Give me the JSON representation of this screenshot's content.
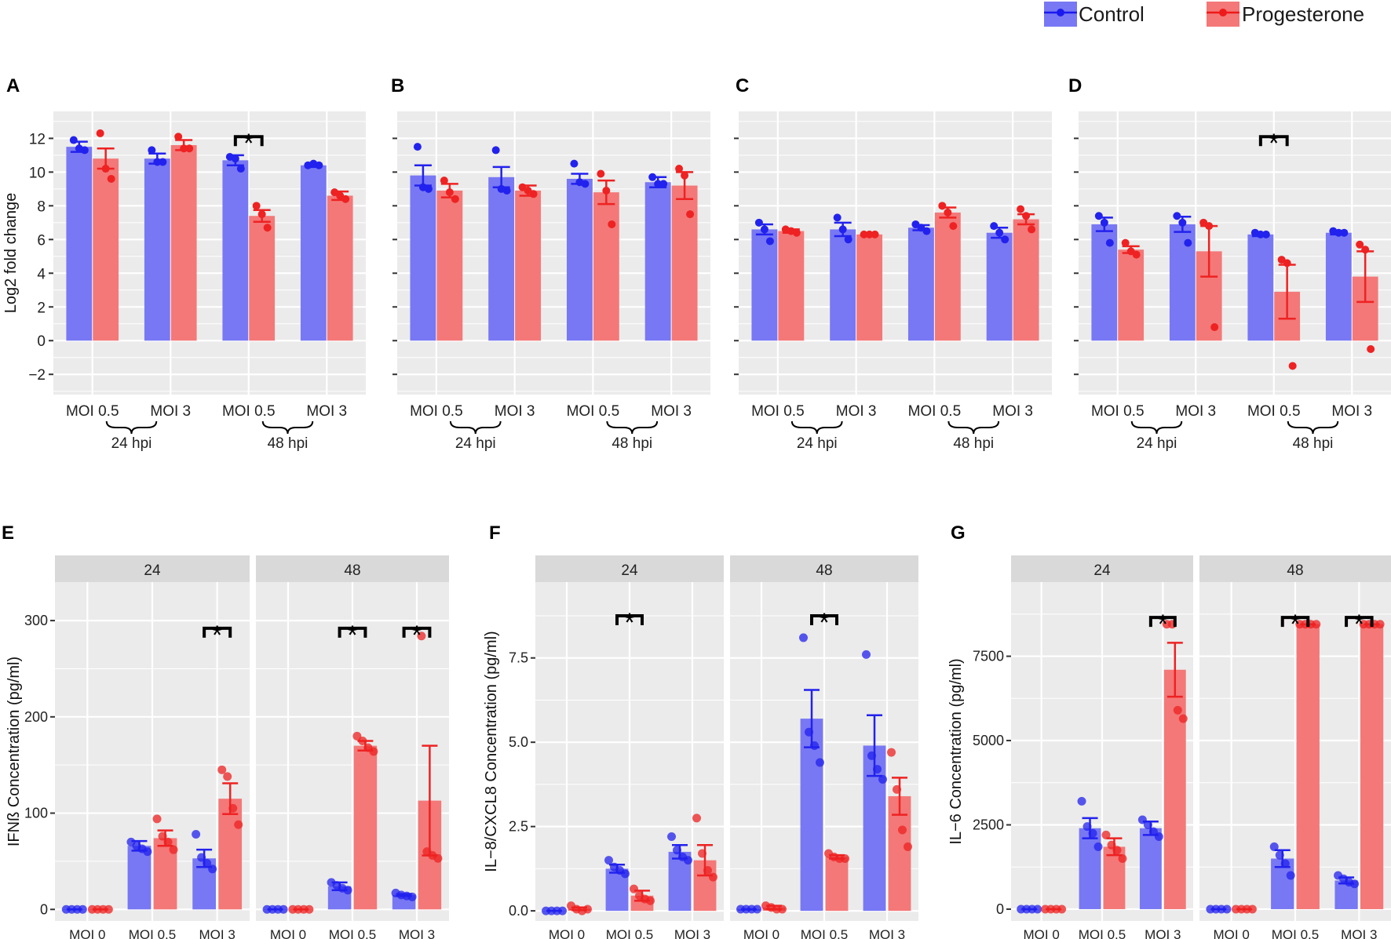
{
  "legend": {
    "entries": [
      {
        "label": "Control",
        "color": "#0000ff"
      },
      {
        "label": "Progesterone",
        "color": "#ff0000"
      }
    ],
    "position": "top-right"
  },
  "colors": {
    "control_bar": "#7878f4",
    "progesterone_bar": "#f47878",
    "control_point": "#2222ee",
    "progesterone_point": "#ee2222",
    "panel_bg": "#ebebeb",
    "strip_bg": "#d9d9d9",
    "grid": "#ffffff"
  },
  "chart_data": [
    {
      "panel": "A",
      "type": "bar",
      "ylabel": "Log2 fold change",
      "ylim": [
        -3.2,
        13.6
      ],
      "yticks": [
        -2,
        0,
        2,
        4,
        6,
        8,
        10,
        12
      ],
      "ytick_labels": [
        "−2",
        "0",
        "2",
        "4",
        "6",
        "8",
        "10",
        "12"
      ],
      "categories": [
        "MOI 0.5",
        "MOI 3",
        "MOI 0.5",
        "MOI 3"
      ],
      "groups": [
        {
          "label": "24 hpi",
          "span": [
            0,
            1
          ]
        },
        {
          "label": "48 hpi",
          "span": [
            2,
            3
          ]
        }
      ],
      "series": [
        {
          "name": "Control",
          "values": [
            11.5,
            10.8,
            10.7,
            10.4
          ],
          "errors": [
            0.3,
            0.3,
            0.3,
            0.1
          ],
          "points": [
            [
              11.9,
              11.4,
              11.3
            ],
            [
              11.3,
              10.6,
              10.6
            ],
            [
              10.9,
              10.8,
              10.2
            ],
            [
              10.4,
              10.5,
              10.4
            ]
          ]
        },
        {
          "name": "Progesterone",
          "values": [
            10.8,
            11.6,
            7.4,
            8.6
          ],
          "errors": [
            0.6,
            0.3,
            0.35,
            0.25
          ],
          "points": [
            [
              12.3,
              10.2,
              9.6
            ],
            [
              12.1,
              11.4,
              11.4
            ],
            [
              8.0,
              7.5,
              6.7
            ],
            [
              8.8,
              8.6,
              8.4
            ]
          ]
        }
      ],
      "significance": [
        {
          "from": 2,
          "to": 2,
          "label": "*",
          "y": 12.1
        }
      ]
    },
    {
      "panel": "B",
      "type": "bar",
      "ylim": [
        -3.2,
        13.6
      ],
      "yticks": [
        -2,
        0,
        2,
        4,
        6,
        8,
        10,
        12
      ],
      "categories": [
        "MOI 0.5",
        "MOI 3",
        "MOI 0.5",
        "MOI 3"
      ],
      "groups": [
        {
          "label": "24 hpi",
          "span": [
            0,
            1
          ]
        },
        {
          "label": "48 hpi",
          "span": [
            2,
            3
          ]
        }
      ],
      "series": [
        {
          "name": "Control",
          "values": [
            9.8,
            9.7,
            9.6,
            9.4
          ],
          "errors": [
            0.6,
            0.6,
            0.3,
            0.3
          ],
          "points": [
            [
              11.5,
              9.1,
              9.0
            ],
            [
              11.3,
              9.0,
              8.9
            ],
            [
              10.5,
              9.4,
              9.3
            ],
            [
              9.7,
              9.3,
              9.3
            ]
          ]
        },
        {
          "name": "Progesterone",
          "values": [
            8.9,
            8.9,
            8.8,
            9.2
          ],
          "errors": [
            0.4,
            0.3,
            0.7,
            0.8
          ],
          "points": [
            [
              9.5,
              8.8,
              8.4
            ],
            [
              9.1,
              8.9,
              8.7
            ],
            [
              9.9,
              8.9,
              6.9
            ],
            [
              10.2,
              9.8,
              7.5
            ]
          ]
        }
      ],
      "significance": []
    },
    {
      "panel": "C",
      "type": "bar",
      "ylim": [
        -3.2,
        13.6
      ],
      "yticks": [
        -2,
        0,
        2,
        4,
        6,
        8,
        10,
        12
      ],
      "categories": [
        "MOI 0.5",
        "MOI 3",
        "MOI 0.5",
        "MOI 3"
      ],
      "groups": [
        {
          "label": "24 hpi",
          "span": [
            0,
            1
          ]
        },
        {
          "label": "48 hpi",
          "span": [
            2,
            3
          ]
        }
      ],
      "series": [
        {
          "name": "Control",
          "values": [
            6.6,
            6.6,
            6.7,
            6.4
          ],
          "errors": [
            0.3,
            0.4,
            0.15,
            0.3
          ],
          "points": [
            [
              7.0,
              6.6,
              5.9
            ],
            [
              7.3,
              6.6,
              6.0
            ],
            [
              6.9,
              6.7,
              6.5
            ],
            [
              6.8,
              6.4,
              6.0
            ]
          ]
        },
        {
          "name": "Progesterone",
          "values": [
            6.5,
            6.3,
            7.6,
            7.2
          ],
          "errors": [
            0.1,
            0.05,
            0.3,
            0.3
          ],
          "points": [
            [
              6.6,
              6.5,
              6.4
            ],
            [
              6.3,
              6.3,
              6.3
            ],
            [
              8.0,
              7.6,
              6.8
            ],
            [
              7.8,
              7.4,
              6.6
            ]
          ]
        }
      ],
      "significance": []
    },
    {
      "panel": "D",
      "type": "bar",
      "ylim": [
        -3.2,
        13.6
      ],
      "yticks": [
        -2,
        0,
        2,
        4,
        6,
        8,
        10,
        12
      ],
      "categories": [
        "MOI 0.5",
        "MOI 3",
        "MOI 0.5",
        "MOI 3"
      ],
      "groups": [
        {
          "label": "24 hpi",
          "span": [
            0,
            1
          ]
        },
        {
          "label": "48 hpi",
          "span": [
            2,
            3
          ]
        }
      ],
      "series": [
        {
          "name": "Control",
          "values": [
            6.9,
            6.9,
            6.3,
            6.4
          ],
          "errors": [
            0.4,
            0.45,
            0.1,
            0.1
          ],
          "points": [
            [
              7.4,
              7.0,
              5.8
            ],
            [
              7.4,
              7.0,
              5.8
            ],
            [
              6.4,
              6.3,
              6.3
            ],
            [
              6.5,
              6.4,
              6.4
            ]
          ]
        },
        {
          "name": "Progesterone",
          "values": [
            5.4,
            5.3,
            2.9,
            3.8
          ],
          "errors": [
            0.2,
            1.5,
            1.6,
            1.5
          ],
          "points": [
            [
              5.8,
              5.3,
              5.1
            ],
            [
              7.0,
              6.8,
              0.8
            ],
            [
              4.8,
              4.6,
              -1.5
            ],
            [
              5.7,
              5.4,
              -0.5
            ]
          ]
        }
      ],
      "significance": [
        {
          "from": 2,
          "to": 2,
          "label": "*",
          "y": 12.1
        }
      ]
    },
    {
      "panel": "E",
      "type": "bar",
      "ylabel": "IFNß Concentration (pg/ml)",
      "ylim": [
        -12,
        340
      ],
      "yticks": [
        0,
        100,
        200,
        300
      ],
      "ytick_labels": [
        "0",
        "100",
        "200",
        "300"
      ],
      "facets": [
        "24",
        "48"
      ],
      "categories": [
        "MOI 0",
        "MOI 0.5",
        "MOI 3"
      ],
      "series": [
        {
          "name": "Control",
          "values": [
            [
              0,
              66,
              53
            ],
            [
              0,
              24,
              15
            ]
          ],
          "errors": [
            [
              0,
              5,
              9
            ],
            [
              0,
              4,
              1
            ]
          ],
          "points": [
            [
              [
                0,
                0,
                0,
                0
              ],
              [
                70,
                66,
                63,
                60
              ],
              [
                78,
                54,
                48,
                42
              ]
            ],
            [
              [
                0,
                0,
                0,
                0
              ],
              [
                28,
                25,
                22,
                20
              ],
              [
                17,
                15,
                14,
                13
              ]
            ]
          ]
        },
        {
          "name": "Progesterone",
          "values": [
            [
              0,
              74,
              115
            ],
            [
              0,
              170,
              113
            ]
          ],
          "errors": [
            [
              0,
              8,
              16
            ],
            [
              0,
              5,
              57
            ]
          ],
          "points": [
            [
              [
                0,
                0,
                0,
                0
              ],
              [
                94,
                76,
                70,
                62
              ],
              [
                145,
                138,
                105,
                88
              ]
            ],
            [
              [
                0,
                0,
                0,
                0
              ],
              [
                180,
                175,
                168,
                164
              ],
              [
                284,
                60,
                56,
                53
              ]
            ]
          ]
        }
      ],
      "significance": [
        {
          "facet": 0,
          "from": 2,
          "to": 2,
          "label": "*",
          "y": 292
        },
        {
          "facet": 1,
          "from": 1,
          "to": 1,
          "label": "*",
          "y": 292
        },
        {
          "facet": 1,
          "from": 2,
          "to": 2,
          "label": "*",
          "y": 292
        }
      ]
    },
    {
      "panel": "F",
      "type": "bar",
      "ylabel": "IL−8/CXCL8 Concentration (pg/ml)",
      "ylim": [
        -0.3,
        9.75
      ],
      "yticks": [
        0,
        2.5,
        5,
        7.5
      ],
      "ytick_labels": [
        "0.0",
        "2.5",
        "5.0",
        "7.5"
      ],
      "facets": [
        "24",
        "48"
      ],
      "categories": [
        "MOI 0",
        "MOI 0.5",
        "MOI 3"
      ],
      "series": [
        {
          "name": "Control",
          "values": [
            [
              0,
              1.25,
              1.75
            ],
            [
              0.05,
              5.7,
              4.9
            ]
          ],
          "errors": [
            [
              0,
              0.12,
              0.2
            ],
            [
              0,
              0.85,
              0.9
            ]
          ],
          "points": [
            [
              [
                0,
                0,
                0,
                0
              ],
              [
                1.5,
                1.3,
                1.2,
                1.1
              ],
              [
                2.2,
                1.8,
                1.6,
                1.5
              ]
            ],
            [
              [
                0.05,
                0.05,
                0.05,
                0.05
              ],
              [
                8.1,
                5.3,
                4.9,
                4.4
              ],
              [
                7.6,
                4.6,
                4.2,
                3.9
              ]
            ]
          ]
        },
        {
          "name": "Progesterone",
          "values": [
            [
              0.06,
              0.45,
              1.5
            ],
            [
              0.1,
              1.6,
              3.4
            ]
          ],
          "errors": [
            [
              0.04,
              0.15,
              0.45
            ],
            [
              0.05,
              0.05,
              0.55
            ]
          ],
          "points": [
            [
              [
                0.15,
                0.05,
                0.0,
                0.05
              ],
              [
                0.65,
                0.45,
                0.35,
                0.3
              ],
              [
                2.75,
                1.7,
                1.2,
                1.0
              ]
            ],
            [
              [
                0.15,
                0.1,
                0.05,
                0.05
              ],
              [
                1.7,
                1.6,
                1.55,
                1.55
              ],
              [
                4.7,
                3.6,
                2.4,
                1.9
              ]
            ]
          ]
        }
      ],
      "significance": [
        {
          "facet": 0,
          "from": 1,
          "to": 1,
          "label": "*",
          "y": 8.75
        },
        {
          "facet": 1,
          "from": 1,
          "to": 1,
          "label": "*",
          "y": 8.75
        }
      ]
    },
    {
      "panel": "G",
      "type": "bar",
      "ylabel": "IL−6 Concentration (pg/ml)",
      "ylim": [
        -350,
        9700
      ],
      "yticks": [
        0,
        2500,
        5000,
        7500
      ],
      "ytick_labels": [
        "0",
        "2500",
        "5000",
        "7500"
      ],
      "facets": [
        "24",
        "48"
      ],
      "categories": [
        "MOI 0",
        "MOI 0.5",
        "MOI 3"
      ],
      "series": [
        {
          "name": "Control",
          "values": [
            [
              0,
              2400,
              2400
            ],
            [
              0,
              1500,
              850
            ]
          ],
          "errors": [
            [
              0,
              300,
              200
            ],
            [
              0,
              250,
              90
            ]
          ],
          "points": [
            [
              [
                0,
                0,
                0,
                0
              ],
              [
                3200,
                2450,
                2250,
                1850
              ],
              [
                2650,
                2500,
                2300,
                2150
              ]
            ],
            [
              [
                0,
                0,
                0,
                0
              ],
              [
                1850,
                1600,
                1350,
                1000
              ],
              [
                1000,
                900,
                800,
                750
              ]
            ]
          ]
        },
        {
          "name": "Progesterone",
          "values": [
            [
              0,
              1850,
              7100
            ],
            [
              0,
              8450,
              8450
            ]
          ],
          "errors": [
            [
              0,
              250,
              800
            ],
            [
              0,
              0,
              0
            ]
          ],
          "points": [
            [
              [
                0,
                0,
                0,
                0
              ],
              [
                2200,
                1900,
                1750,
                1500
              ],
              [
                8450,
                8450,
                5900,
                5650
              ]
            ],
            [
              [
                0,
                0,
                0,
                0
              ],
              [
                8450,
                8450,
                8450,
                8450
              ],
              [
                8450,
                8450,
                8450,
                8450
              ]
            ]
          ]
        }
      ],
      "significance": [
        {
          "facet": 0,
          "from": 2,
          "to": 2,
          "label": "*",
          "y": 8650
        },
        {
          "facet": 1,
          "from": 1,
          "to": 1,
          "label": "*",
          "y": 8650
        },
        {
          "facet": 1,
          "from": 2,
          "to": 2,
          "label": "*",
          "y": 8650
        }
      ]
    }
  ]
}
